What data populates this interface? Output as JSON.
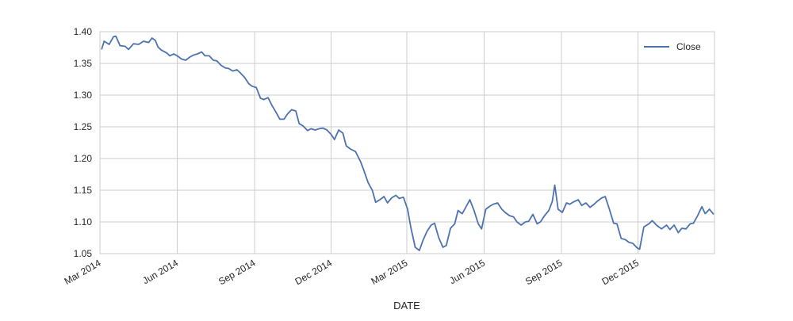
{
  "chart_data": {
    "type": "line",
    "title": "",
    "xlabel": "DATE",
    "ylabel": "",
    "xlim": [
      "2014-03-01",
      "2016-03-01"
    ],
    "ylim": [
      1.05,
      1.4
    ],
    "x_ticks": [
      "2014-03-01",
      "2014-06-01",
      "2014-09-01",
      "2014-12-01",
      "2015-03-01",
      "2015-06-01",
      "2015-09-01",
      "2015-12-01"
    ],
    "x_tick_labels": [
      "Mar 2014",
      "Jun 2014",
      "Sep 2014",
      "Dec 2014",
      "Mar 2015",
      "Jun 2015",
      "Sep 2015",
      "Dec 2015"
    ],
    "y_ticks": [
      1.05,
      1.1,
      1.15,
      1.2,
      1.25,
      1.3,
      1.35,
      1.4
    ],
    "y_tick_labels": [
      "1.05",
      "1.10",
      "1.15",
      "1.20",
      "1.25",
      "1.30",
      "1.35",
      "1.40"
    ],
    "grid": true,
    "legend": {
      "position": "top-right"
    },
    "colors": {
      "line": "#4c72b0",
      "grid": "#cccccc",
      "frame": "#cccccc",
      "background": "#ffffff"
    },
    "series": [
      {
        "name": "Close",
        "x": [
          "2014-03-03",
          "2014-03-06",
          "2014-03-12",
          "2014-03-17",
          "2014-03-20",
          "2014-03-25",
          "2014-03-31",
          "2014-04-04",
          "2014-04-10",
          "2014-04-16",
          "2014-04-22",
          "2014-04-28",
          "2014-05-02",
          "2014-05-06",
          "2014-05-09",
          "2014-05-13",
          "2014-05-16",
          "2014-05-20",
          "2014-05-23",
          "2014-05-28",
          "2014-06-02",
          "2014-06-06",
          "2014-06-11",
          "2014-06-16",
          "2014-06-20",
          "2014-06-25",
          "2014-06-30",
          "2014-07-04",
          "2014-07-09",
          "2014-07-14",
          "2014-07-18",
          "2014-07-23",
          "2014-07-28",
          "2014-08-01",
          "2014-08-06",
          "2014-08-11",
          "2014-08-15",
          "2014-08-20",
          "2014-08-25",
          "2014-08-29",
          "2014-09-03",
          "2014-09-08",
          "2014-09-12",
          "2014-09-17",
          "2014-09-22",
          "2014-09-26",
          "2014-10-01",
          "2014-10-06",
          "2014-10-10",
          "2014-10-15",
          "2014-10-20",
          "2014-10-24",
          "2014-10-29",
          "2014-11-03",
          "2014-11-07",
          "2014-11-12",
          "2014-11-17",
          "2014-11-21",
          "2014-11-26",
          "2014-12-01",
          "2014-12-05",
          "2014-12-10",
          "2014-12-15",
          "2014-12-19",
          "2014-12-24",
          "2014-12-30",
          "2015-01-05",
          "2015-01-09",
          "2015-01-14",
          "2015-01-19",
          "2015-01-23",
          "2015-01-28",
          "2015-02-02",
          "2015-02-06",
          "2015-02-11",
          "2015-02-16",
          "2015-02-20",
          "2015-02-25",
          "2015-03-02",
          "2015-03-06",
          "2015-03-11",
          "2015-03-16",
          "2015-03-20",
          "2015-03-25",
          "2015-03-30",
          "2015-04-03",
          "2015-04-08",
          "2015-04-13",
          "2015-04-17",
          "2015-04-22",
          "2015-04-27",
          "2015-05-01",
          "2015-05-06",
          "2015-05-11",
          "2015-05-15",
          "2015-05-20",
          "2015-05-25",
          "2015-05-29",
          "2015-06-03",
          "2015-06-08",
          "2015-06-12",
          "2015-06-17",
          "2015-06-22",
          "2015-06-26",
          "2015-07-01",
          "2015-07-06",
          "2015-07-10",
          "2015-07-15",
          "2015-07-20",
          "2015-07-24",
          "2015-07-29",
          "2015-08-03",
          "2015-08-07",
          "2015-08-12",
          "2015-08-17",
          "2015-08-21",
          "2015-08-24",
          "2015-08-28",
          "2015-09-02",
          "2015-09-07",
          "2015-09-11",
          "2015-09-16",
          "2015-09-21",
          "2015-09-25",
          "2015-09-30",
          "2015-10-05",
          "2015-10-09",
          "2015-10-14",
          "2015-10-19",
          "2015-10-23",
          "2015-10-28",
          "2015-11-02",
          "2015-11-06",
          "2015-11-11",
          "2015-11-16",
          "2015-11-20",
          "2015-11-25",
          "2015-11-30",
          "2015-12-03",
          "2015-12-08",
          "2015-12-14",
          "2015-12-18",
          "2015-12-23",
          "2015-12-29",
          "2016-01-04",
          "2016-01-08",
          "2016-01-13",
          "2016-01-18",
          "2016-01-22",
          "2016-01-27",
          "2016-02-01",
          "2016-02-05",
          "2016-02-10",
          "2016-02-15",
          "2016-02-19",
          "2016-02-24",
          "2016-02-29"
        ],
        "y": [
          1.372,
          1.385,
          1.38,
          1.392,
          1.393,
          1.378,
          1.377,
          1.372,
          1.381,
          1.38,
          1.385,
          1.383,
          1.39,
          1.386,
          1.376,
          1.371,
          1.369,
          1.366,
          1.362,
          1.365,
          1.361,
          1.357,
          1.355,
          1.36,
          1.363,
          1.365,
          1.368,
          1.362,
          1.362,
          1.355,
          1.354,
          1.347,
          1.343,
          1.342,
          1.338,
          1.34,
          1.335,
          1.328,
          1.318,
          1.314,
          1.312,
          1.295,
          1.293,
          1.296,
          1.283,
          1.274,
          1.262,
          1.262,
          1.27,
          1.277,
          1.275,
          1.255,
          1.251,
          1.244,
          1.247,
          1.245,
          1.247,
          1.248,
          1.245,
          1.238,
          1.23,
          1.245,
          1.24,
          1.22,
          1.215,
          1.211,
          1.195,
          1.181,
          1.162,
          1.15,
          1.131,
          1.135,
          1.14,
          1.13,
          1.138,
          1.142,
          1.137,
          1.139,
          1.12,
          1.09,
          1.06,
          1.055,
          1.07,
          1.085,
          1.095,
          1.098,
          1.075,
          1.06,
          1.063,
          1.09,
          1.097,
          1.118,
          1.113,
          1.125,
          1.135,
          1.118,
          1.097,
          1.089,
          1.12,
          1.125,
          1.128,
          1.13,
          1.12,
          1.115,
          1.11,
          1.108,
          1.1,
          1.095,
          1.1,
          1.101,
          1.112,
          1.097,
          1.1,
          1.11,
          1.118,
          1.132,
          1.158,
          1.12,
          1.115,
          1.13,
          1.128,
          1.132,
          1.135,
          1.126,
          1.13,
          1.123,
          1.127,
          1.133,
          1.138,
          1.14,
          1.12,
          1.098,
          1.097,
          1.074,
          1.072,
          1.068,
          1.066,
          1.059,
          1.057,
          1.092,
          1.097,
          1.102,
          1.095,
          1.089,
          1.095,
          1.088,
          1.095,
          1.083,
          1.09,
          1.089,
          1.097,
          1.098,
          1.11,
          1.124,
          1.113,
          1.12,
          1.112
        ]
      }
    ]
  }
}
